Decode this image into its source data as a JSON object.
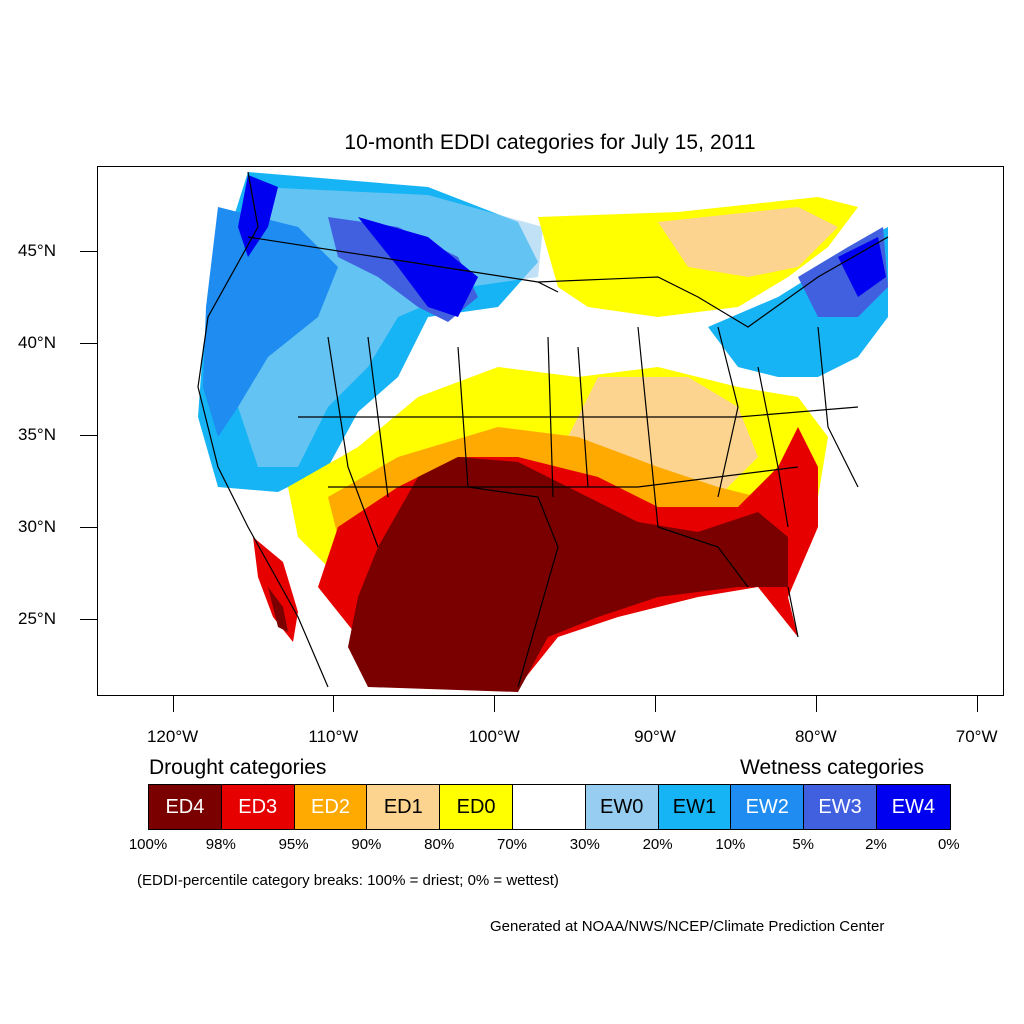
{
  "title": "10-month EDDI categories for July 15, 2011",
  "map": {
    "lon_range": [
      -124.7,
      -68.3
    ],
    "lat_range": [
      20.8,
      49.6
    ],
    "lat_ticks": [
      {
        "value": 45,
        "label": "45°N"
      },
      {
        "value": 40,
        "label": "40°N"
      },
      {
        "value": 35,
        "label": "35°N"
      },
      {
        "value": 30,
        "label": "30°N"
      },
      {
        "value": 25,
        "label": "25°N"
      }
    ],
    "lon_ticks": [
      {
        "value": -120,
        "label": "120°W"
      },
      {
        "value": -110,
        "label": "110°W"
      },
      {
        "value": -100,
        "label": "100°W"
      },
      {
        "value": -90,
        "label": "90°W"
      },
      {
        "value": -80,
        "label": "80°W"
      },
      {
        "value": -70,
        "label": "70°W"
      }
    ]
  },
  "legend": {
    "drought_heading": "Drought categories",
    "wetness_heading": "Wetness categories",
    "categories": [
      {
        "label": "ED4",
        "color": "#7a0000",
        "text_color": "#ffffff"
      },
      {
        "label": "ED3",
        "color": "#e60000",
        "text_color": "#ffffff"
      },
      {
        "label": "ED2",
        "color": "#ffaa00",
        "text_color": "#ffffff"
      },
      {
        "label": "ED1",
        "color": "#fcd38f",
        "text_color": "#000000"
      },
      {
        "label": "ED0",
        "color": "#ffff00",
        "text_color": "#000000"
      },
      {
        "label": "",
        "color": "#ffffff",
        "text_color": "#000000"
      },
      {
        "label": "EW0",
        "color": "#97cdf0",
        "text_color": "#000000"
      },
      {
        "label": "EW1",
        "color": "#16b4f5",
        "text_color": "#000000"
      },
      {
        "label": "EW2",
        "color": "#1e8cf0",
        "text_color": "#ffffff"
      },
      {
        "label": "EW3",
        "color": "#4060e0",
        "text_color": "#ffffff"
      },
      {
        "label": "EW4",
        "color": "#0000f0",
        "text_color": "#ffffff"
      }
    ],
    "breaks": [
      "100%",
      "98%",
      "95%",
      "90%",
      "80%",
      "70%",
      "30%",
      "20%",
      "10%",
      "5%",
      "2%",
      "0%"
    ],
    "note": "(EDDI-percentile category breaks: 100% = driest; 0% = wettest)"
  },
  "credit": "Generated at NOAA/NWS/NCEP/Climate Prediction Center"
}
